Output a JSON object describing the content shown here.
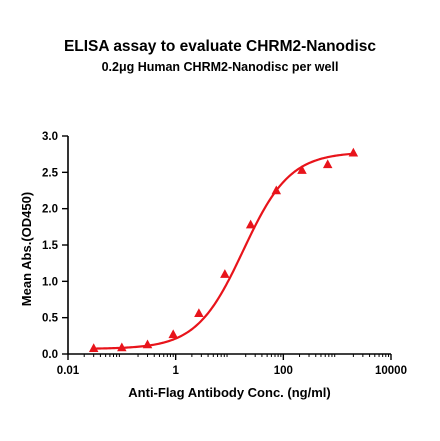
{
  "chart_data": {
    "type": "scatter",
    "title": "ELISA assay to evaluate CHRM2-Nanodisc",
    "subtitle": "0.2μg Human CHRM2-Nanodisc per well",
    "xlabel": "Anti-Flag Antibody Conc. (ng/ml)",
    "ylabel": "Mean Abs.(OD450)",
    "xscale": "log",
    "xlim": [
      0.01,
      10000
    ],
    "ylim": [
      0,
      3.0
    ],
    "x_ticks": [
      0.01,
      1,
      100,
      10000
    ],
    "x_tick_labels": [
      "0.01",
      "1",
      "100",
      "10000"
    ],
    "y_ticks": [
      0.0,
      0.5,
      1.0,
      1.5,
      2.0,
      2.5,
      3.0
    ],
    "y_tick_labels": [
      "0.0",
      "0.5",
      "1.0",
      "1.5",
      "2.0",
      "2.5",
      "3.0"
    ],
    "grid": false,
    "legend": "none",
    "color": "#e8141b",
    "marker": "triangle",
    "series": [
      {
        "x": [
          0.03,
          0.1,
          0.3,
          0.9,
          2.7,
          8.2,
          24.7,
          74,
          222,
          667,
          2000
        ],
        "y": [
          0.08,
          0.09,
          0.13,
          0.27,
          0.56,
          1.1,
          1.78,
          2.25,
          2.53,
          2.61,
          2.77
        ]
      }
    ],
    "fit_curve": {
      "model": "4PL",
      "bottom": 0.07,
      "top": 2.78,
      "ec50": 18,
      "hill": 1.0
    }
  }
}
